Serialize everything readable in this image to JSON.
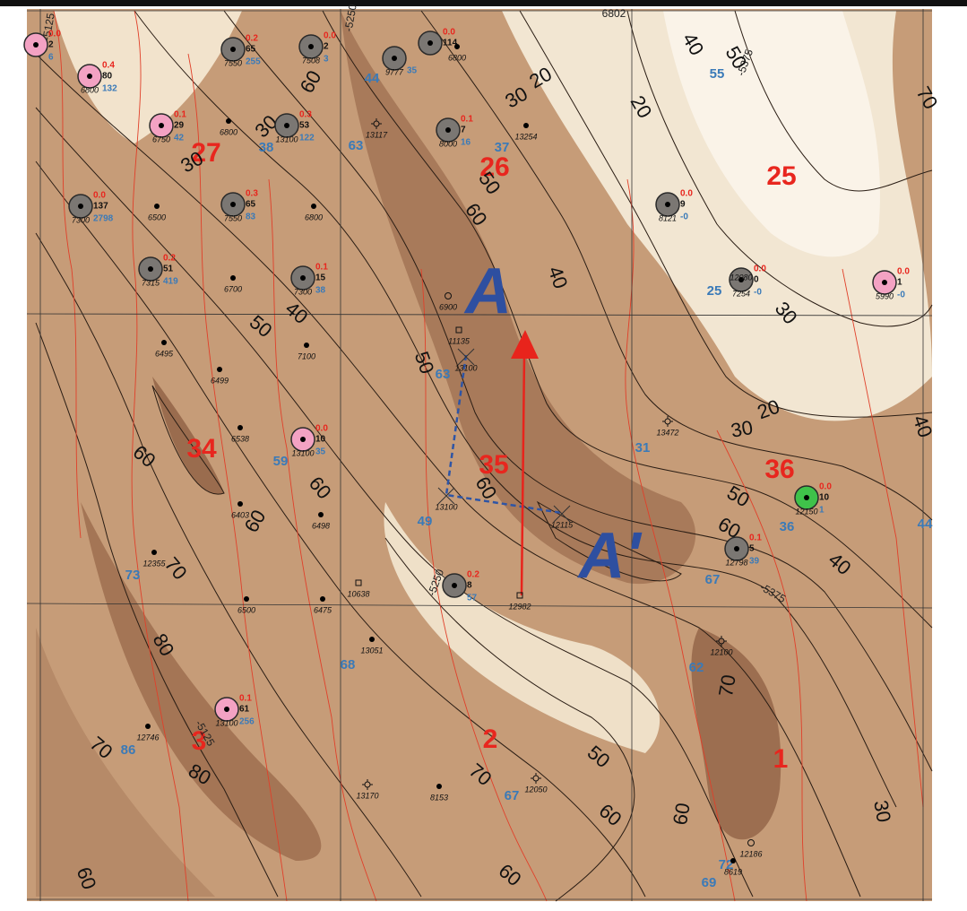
{
  "sections": [
    "27",
    "26",
    "25",
    "34",
    "35",
    "36",
    "3",
    "2",
    "1"
  ],
  "cross_section": {
    "start": "A",
    "end": "A'"
  },
  "subsea_labels": [
    "-5125",
    "-5250",
    "-5375",
    "-5250",
    "-5375",
    "-5125",
    "6802"
  ],
  "contour_labels": [
    "60",
    "30",
    "30",
    "20",
    "30",
    "20",
    "40",
    "50",
    "70",
    "50",
    "60",
    "40",
    "50",
    "40",
    "50",
    "30",
    "20",
    "30",
    "40",
    "60",
    "60",
    "60",
    "60",
    "50",
    "60",
    "40",
    "70",
    "80",
    "70",
    "70",
    "80",
    "50",
    "70",
    "60",
    "60",
    "30",
    "60",
    "60"
  ],
  "blue_labels": [
    "44",
    "63",
    "38",
    "37",
    "55",
    "25",
    "63",
    "59",
    "31",
    "49",
    "36",
    "73",
    "67",
    "68",
    "62",
    "86",
    "67",
    "69",
    "72",
    "44"
  ],
  "wells": [
    {
      "symbol": "pink",
      "red": "0.0",
      "top": "2",
      "blue": "6"
    },
    {
      "symbol": "pink",
      "red": "0.4",
      "top": "80",
      "depth": "6800",
      "blue": "132"
    },
    {
      "symbol": "gray",
      "red": "0.2",
      "top": "65",
      "depth": "7550",
      "blue": "255"
    },
    {
      "symbol": "gray",
      "red": "0.0",
      "top": "2",
      "depth": "7508",
      "blue": "3"
    },
    {
      "symbol": "gray",
      "depth": "9777",
      "blue": "35"
    },
    {
      "symbol": "gray",
      "red": "0.0",
      "top": "114"
    },
    {
      "symbol": "dot",
      "depth": "6800"
    },
    {
      "symbol": "pink",
      "red": "0.1",
      "top": "29",
      "depth": "6750",
      "blue": "42"
    },
    {
      "symbol": "dot",
      "depth": "6800"
    },
    {
      "symbol": "gray",
      "red": "0.3",
      "top": "53",
      "depth": "13100",
      "blue": "122"
    },
    {
      "symbol": "star",
      "depth": "13117"
    },
    {
      "symbol": "gray",
      "red": "0.1",
      "top": "7",
      "depth": "8000",
      "blue": "16"
    },
    {
      "symbol": "dot",
      "depth": "13254"
    },
    {
      "symbol": "gray",
      "red": "0.0",
      "top": "137",
      "depth": "7300",
      "blue": "2798"
    },
    {
      "symbol": "dot",
      "depth": "6500"
    },
    {
      "symbol": "gray",
      "red": "0.3",
      "top": "65",
      "depth": "7550",
      "blue": "83"
    },
    {
      "symbol": "dot",
      "depth": "6800"
    },
    {
      "symbol": "gray",
      "red": "0.0",
      "top": "9",
      "depth": "8121",
      "blue": "-0"
    },
    {
      "symbol": "gray",
      "red": "0.2",
      "top": "51",
      "depth": "7315",
      "blue": "419"
    },
    {
      "symbol": "dot",
      "depth": "6700"
    },
    {
      "symbol": "gray",
      "red": "0.1",
      "top": "15",
      "depth": "7300",
      "blue": "38"
    },
    {
      "symbol": "gray",
      "red": "0.0",
      "top": "0",
      "depth": "7254",
      "depth_alt": "12080",
      "blue": "-0"
    },
    {
      "symbol": "pink",
      "red": "0.0",
      "top": "1",
      "depth": "5990",
      "blue": "-0"
    },
    {
      "symbol": "hollow",
      "depth": "6900"
    },
    {
      "symbol": "dot",
      "depth": "6495"
    },
    {
      "symbol": "dot",
      "depth": "6499"
    },
    {
      "symbol": "dot",
      "depth": "7100"
    },
    {
      "symbol": "square",
      "depth": "11135"
    },
    {
      "symbol": "x",
      "depth": "13100"
    },
    {
      "symbol": "dot",
      "depth": "6538"
    },
    {
      "symbol": "pink",
      "red": "0.0",
      "top": "10",
      "depth": "13100",
      "blue": "35"
    },
    {
      "symbol": "star",
      "depth": "13472"
    },
    {
      "symbol": "dot",
      "depth": "6403"
    },
    {
      "symbol": "dot",
      "depth": "6498"
    },
    {
      "symbol": "x",
      "depth": "13100"
    },
    {
      "symbol": "x",
      "depth": "12115"
    },
    {
      "symbol": "green",
      "red": "0.0",
      "top": "10",
      "depth": "12150",
      "blue": "1"
    },
    {
      "symbol": "dot",
      "depth": "12355"
    },
    {
      "symbol": "dot",
      "depth": "6500"
    },
    {
      "symbol": "dot",
      "depth": "6475"
    },
    {
      "symbol": "square",
      "depth": "10638"
    },
    {
      "symbol": "gray",
      "red": "0.2",
      "top": "8",
      "blue": "57"
    },
    {
      "symbol": "square",
      "depth": "12982"
    },
    {
      "symbol": "gray",
      "red": "0.1",
      "top": "5",
      "depth": "12798",
      "blue": "39"
    },
    {
      "symbol": "dot",
      "depth": "13051"
    },
    {
      "symbol": "star",
      "depth": "12100"
    },
    {
      "symbol": "pink",
      "red": "0.1",
      "top": "61",
      "depth": "13100",
      "blue": "256"
    },
    {
      "symbol": "dot",
      "depth": "12746"
    },
    {
      "symbol": "star",
      "depth": "13170"
    },
    {
      "symbol": "dot",
      "depth": "8153"
    },
    {
      "symbol": "star",
      "depth": "12050"
    },
    {
      "symbol": "hollow",
      "depth": "12186"
    },
    {
      "symbol": "dot",
      "depth": "8619"
    }
  ]
}
